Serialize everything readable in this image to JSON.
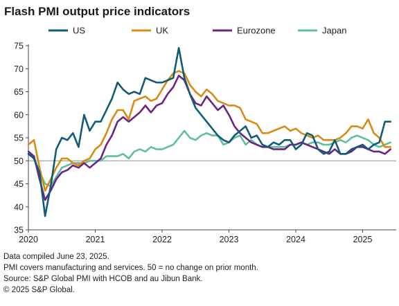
{
  "chart_data": {
    "type": "line",
    "title": "Flash PMI output price indicators",
    "xlabel": "",
    "ylabel": "",
    "x_start": "2020-01",
    "x_end": "2025-06",
    "x_ticks": [
      "2020",
      "2021",
      "2022",
      "2023",
      "2024",
      "2025"
    ],
    "ylim": [
      35,
      75
    ],
    "y_ticks": [
      35,
      40,
      45,
      50,
      55,
      60,
      65,
      70,
      75
    ],
    "reference_line": 50,
    "grid": false,
    "legend_position": "top",
    "series": [
      {
        "name": "US",
        "color": "#0f5b78",
        "values": [
          51.5,
          50.5,
          47.5,
          38.0,
          44.5,
          52.5,
          55.0,
          54.5,
          56.0,
          53.0,
          60.0,
          56.5,
          58.5,
          58.5,
          61.0,
          63.5,
          67.0,
          65.5,
          64.5,
          65.0,
          64.5,
          68.0,
          67.5,
          67.0,
          67.0,
          67.5,
          68.0,
          74.5,
          68.0,
          64.5,
          61.5,
          60.0,
          58.5,
          57.0,
          55.5,
          54.5,
          54.0,
          55.5,
          56.5,
          57.5,
          55.0,
          55.5,
          53.5,
          53.0,
          54.0,
          53.5,
          54.5,
          54.5,
          52.5,
          53.5,
          56.0,
          55.5,
          52.5,
          51.5,
          52.0,
          54.5,
          51.5,
          51.5,
          52.5,
          53.0,
          53.5,
          52.5,
          53.5,
          54.0,
          58.5,
          58.5
        ]
      },
      {
        "name": "UK",
        "color": "#d98a15",
        "values": [
          53.5,
          54.5,
          48.5,
          43.5,
          46.0,
          48.5,
          50.5,
          50.5,
          49.5,
          49.0,
          50.0,
          50.5,
          52.5,
          53.5,
          56.0,
          59.0,
          61.0,
          61.0,
          59.0,
          63.0,
          63.5,
          64.0,
          63.0,
          63.5,
          65.5,
          67.5,
          69.0,
          69.5,
          69.0,
          66.5,
          65.0,
          64.0,
          65.5,
          64.5,
          63.0,
          62.5,
          62.0,
          62.0,
          61.5,
          59.0,
          58.5,
          58.0,
          56.0,
          56.0,
          56.5,
          57.0,
          57.5,
          56.5,
          57.0,
          56.0,
          55.5,
          55.0,
          55.5,
          54.5,
          54.5,
          54.5,
          55.0,
          56.0,
          57.5,
          57.5,
          57.0,
          59.0,
          56.0,
          55.0,
          53.0,
          53.0
        ]
      },
      {
        "name": "Eurozone",
        "color": "#6a2483",
        "values": [
          52.0,
          51.0,
          46.0,
          41.5,
          43.5,
          46.0,
          47.5,
          48.0,
          49.0,
          48.5,
          49.5,
          48.5,
          49.5,
          50.5,
          53.5,
          55.5,
          58.5,
          59.5,
          58.5,
          59.5,
          60.5,
          62.0,
          60.5,
          62.0,
          62.5,
          64.5,
          66.0,
          68.5,
          67.5,
          64.5,
          62.5,
          62.0,
          64.0,
          62.5,
          61.0,
          62.0,
          60.0,
          57.5,
          56.0,
          55.0,
          54.0,
          53.5,
          53.0,
          53.0,
          52.5,
          52.5,
          52.5,
          53.5,
          53.5,
          54.0,
          53.5,
          53.0,
          52.5,
          52.0,
          51.5,
          52.5,
          51.5,
          51.5,
          52.0,
          53.0,
          53.0,
          52.5,
          52.0,
          52.0,
          51.5,
          52.5
        ]
      },
      {
        "name": "Japan",
        "color": "#5fbf9c",
        "values": [
          51.5,
          50.5,
          47.5,
          45.0,
          44.5,
          46.5,
          48.5,
          49.0,
          49.5,
          49.5,
          49.5,
          50.0,
          50.0,
          50.0,
          51.0,
          51.0,
          51.0,
          51.5,
          50.5,
          52.0,
          52.5,
          52.0,
          53.0,
          52.5,
          52.5,
          53.0,
          53.5,
          55.0,
          56.5,
          55.0,
          54.5,
          55.5,
          56.0,
          55.5,
          55.5,
          53.5,
          54.0,
          55.0,
          55.5,
          53.5,
          54.5,
          53.5,
          53.0,
          53.0,
          53.0,
          53.0,
          53.0,
          53.5,
          53.5,
          54.0,
          53.5,
          54.0,
          54.0,
          53.5,
          53.5,
          54.0,
          54.5,
          54.0,
          55.0,
          55.5,
          55.0,
          54.5,
          53.5,
          53.0,
          53.5,
          54.0
        ]
      }
    ]
  },
  "notes": [
    "Data compiled June 23, 2025.",
    "PMI covers manufacturing and services. 50 = no change on prior month.",
    "Source: S&P Global PMI with HCOB and au Jibun Bank.",
    "© 2025 S&P Global."
  ]
}
